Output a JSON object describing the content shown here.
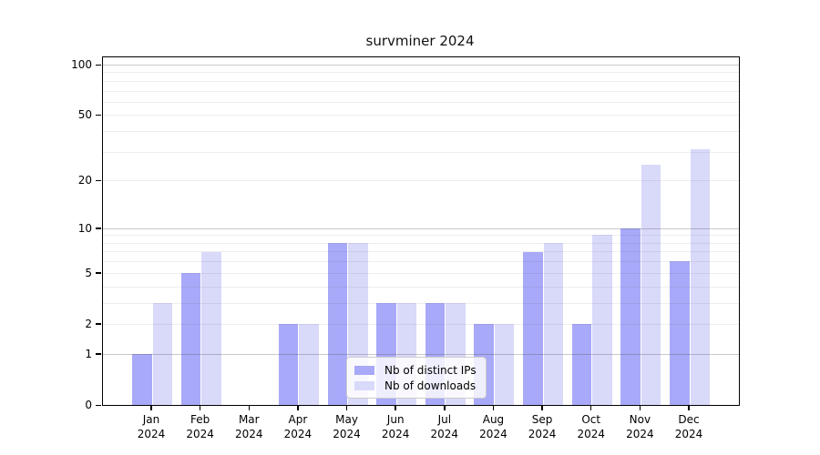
{
  "chart_data": {
    "type": "bar",
    "title": "survminer 2024",
    "categories": [
      "Jan",
      "Feb",
      "Mar",
      "Apr",
      "May",
      "Jun",
      "Jul",
      "Aug",
      "Sep",
      "Oct",
      "Nov",
      "Dec"
    ],
    "category_year": "2024",
    "series": [
      {
        "name": "Nb of distinct IPs",
        "color": "#a9a9f9",
        "values": [
          1,
          5,
          0,
          2,
          8,
          3,
          3,
          2,
          7,
          2,
          10,
          6
        ]
      },
      {
        "name": "Nb of downloads",
        "color": "#d9d9fa",
        "values": [
          3,
          7,
          0,
          2,
          8,
          3,
          3,
          2,
          8,
          9,
          25,
          31
        ]
      }
    ],
    "yscale": "log1p",
    "ylim": [
      0,
      111
    ],
    "yticks": [
      0,
      1,
      2,
      5,
      10,
      20,
      50,
      100
    ],
    "major_gridlines": [
      1,
      10,
      100
    ],
    "minor_gridlines": [
      2,
      3,
      4,
      5,
      6,
      7,
      8,
      9,
      20,
      30,
      40,
      50,
      60,
      70,
      80,
      90
    ],
    "grid": "on",
    "legend_position": "lower center",
    "xlabel": "",
    "ylabel": ""
  }
}
